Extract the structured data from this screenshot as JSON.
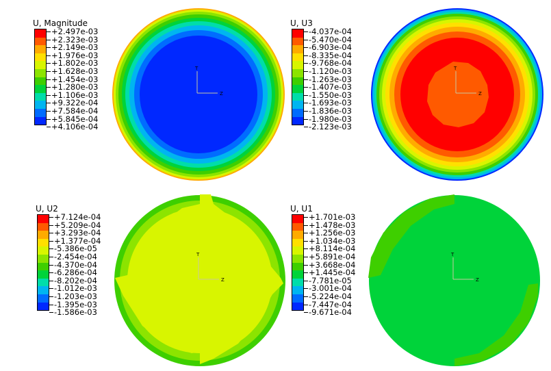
{
  "panels": [
    {
      "title": "U, Magnitude",
      "legend": [
        "+2.497e-03",
        "+2.323e-03",
        "+2.149e-03",
        "+1.976e-03",
        "+1.802e-03",
        "+1.628e-03",
        "+1.454e-03",
        "+1.280e-03",
        "+1.106e-03",
        "+9.322e-04",
        "+7.584e-04",
        "+5.845e-04",
        "+4.106e-04"
      ]
    },
    {
      "title": "U, U3",
      "legend": [
        "-4.037e-04",
        "-5.470e-04",
        "-6.903e-04",
        "-8.335e-04",
        "-9.768e-04",
        "-1.120e-03",
        "-1.263e-03",
        "-1.407e-03",
        "-1.550e-03",
        "-1.693e-03",
        "-1.836e-03",
        "-1.980e-03",
        "-2.123e-03"
      ]
    },
    {
      "title": "U, U2",
      "legend": [
        "+7.124e-04",
        "+5.209e-04",
        "+3.293e-04",
        "+1.377e-04",
        "-5.386e-05",
        "-2.454e-04",
        "-4.370e-04",
        "-6.286e-04",
        "-8.202e-04",
        "-1.012e-03",
        "-1.203e-03",
        "-1.395e-03",
        "-1.586e-03"
      ]
    },
    {
      "title": "U, U1",
      "legend": [
        "+1.701e-03",
        "+1.478e-03",
        "+1.256e-03",
        "+1.034e-03",
        "+8.114e-04",
        "+5.891e-04",
        "+3.668e-04",
        "+1.445e-04",
        "-7.781e-05",
        "-3.001e-04",
        "-5.224e-04",
        "-7.447e-04",
        "-9.671e-04"
      ]
    }
  ],
  "colors": [
    "#ff0000",
    "#ff5a00",
    "#ffab00",
    "#ffe000",
    "#d8f500",
    "#8ce400",
    "#3ecf00",
    "#00d33a",
    "#00ddaa",
    "#00b5f0",
    "#006cff",
    "#0028ff",
    "#0000e6"
  ],
  "axis": {
    "t": "T",
    "z": "Z"
  }
}
